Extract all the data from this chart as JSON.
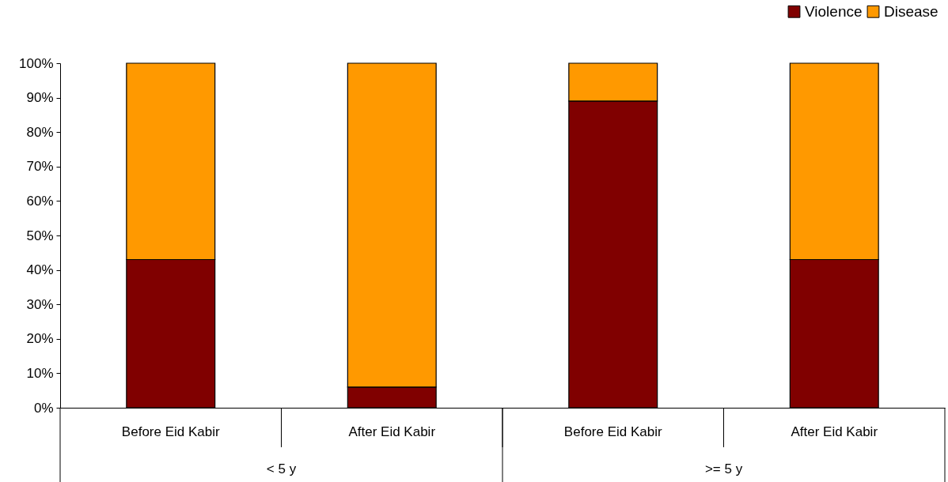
{
  "chart_data": {
    "type": "bar",
    "stacked": true,
    "categories": [
      "Before Eid Kabir",
      "After Eid Kabir",
      "Before Eid Kabir",
      "After Eid Kabir"
    ],
    "series": [
      {
        "name": "Violence",
        "color": "#800000",
        "values": [
          43,
          6,
          89,
          43
        ]
      },
      {
        "name": "Disease",
        "color": "#ff9900",
        "values": [
          57,
          94,
          11,
          57
        ]
      }
    ],
    "annotations": [
      "< 5 y",
      ">= 5 y"
    ],
    "ylim": [
      0,
      100
    ],
    "yticks": [
      {
        "value": 0,
        "label": "0%"
      },
      {
        "value": 10,
        "label": "10%"
      },
      {
        "value": 20,
        "label": "20%"
      },
      {
        "value": 30,
        "label": "30%"
      },
      {
        "value": 40,
        "label": "40%"
      },
      {
        "value": 50,
        "label": "50%"
      },
      {
        "value": 60,
        "label": "60%"
      },
      {
        "value": 70,
        "label": "70%"
      },
      {
        "value": 80,
        "label": "80%"
      },
      {
        "value": 90,
        "label": "90%"
      },
      {
        "value": 100,
        "label": "100%"
      }
    ],
    "grid": false,
    "legend": "top right"
  }
}
